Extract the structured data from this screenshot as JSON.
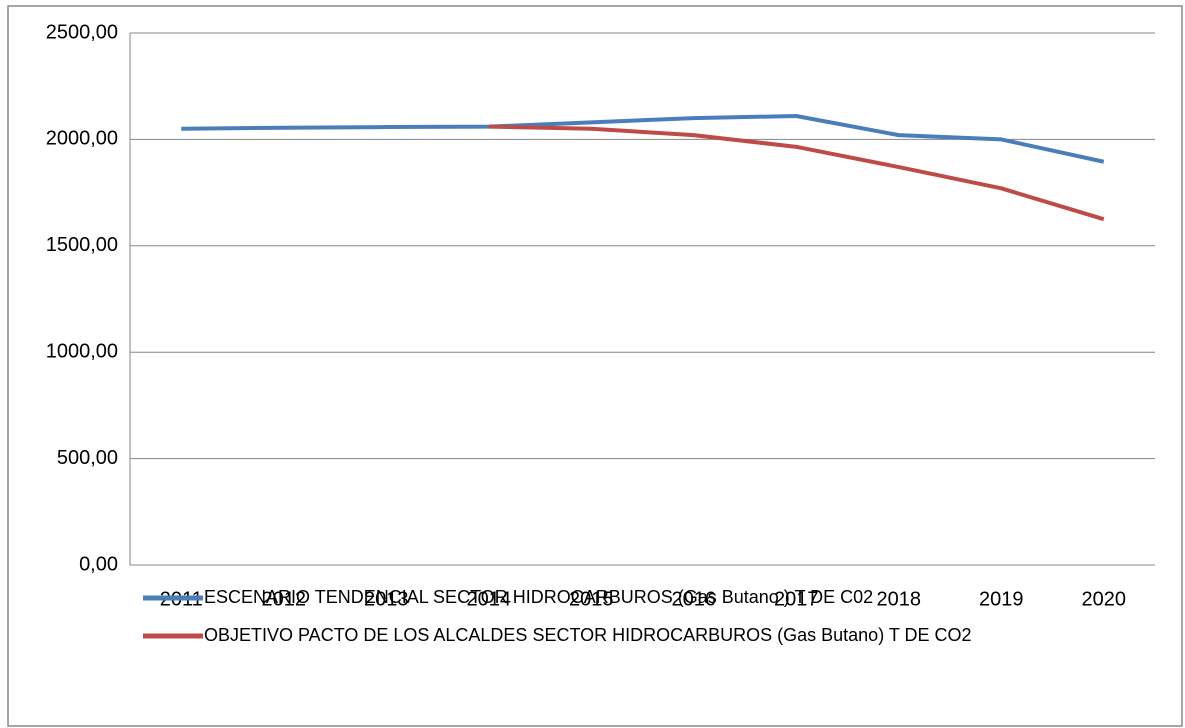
{
  "chart_data": {
    "type": "line",
    "categories": [
      "2011",
      "2012",
      "2013",
      "2014",
      "2015",
      "2016",
      "2017",
      "2018",
      "2019",
      "2020"
    ],
    "series": [
      {
        "name": "ESCENARIO TENDENCIAL SECTOR HIDROCARBUROS  (Gas Butano ) T DE C02",
        "color": "#4a7ebb",
        "values": [
          2050,
          2055,
          2058,
          2060,
          2080,
          2100,
          2110,
          2020,
          2000,
          1895
        ]
      },
      {
        "name": "OBJETIVO PACTO DE LOS ALCALDES SECTOR HIDROCARBUROS (Gas Butano) T DE CO2",
        "color": "#be4b48",
        "values": [
          null,
          null,
          null,
          2060,
          2050,
          2020,
          1965,
          1870,
          1770,
          1625
        ]
      }
    ],
    "ylim": [
      0,
      2500
    ],
    "yticks": [
      {
        "value": 0,
        "label": "0,00"
      },
      {
        "value": 500,
        "label": "500,00"
      },
      {
        "value": 1000,
        "label": "1000,00"
      },
      {
        "value": 1500,
        "label": "1500,00"
      },
      {
        "value": 2000,
        "label": "2000,00"
      },
      {
        "value": 2500,
        "label": "2500,00"
      }
    ],
    "grid": true,
    "legend": "bottom"
  }
}
